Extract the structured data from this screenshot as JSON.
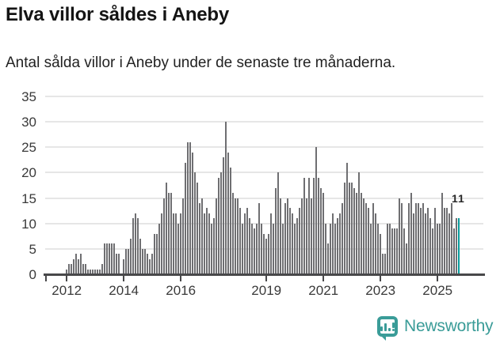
{
  "header": {
    "title": "Elva villor såldes i Aneby",
    "subtitle": "Antal sålda villor i Aneby under de senaste tre månaderna."
  },
  "chart_data": {
    "type": "bar",
    "title": "Elva villor såldes i Aneby",
    "subtitle": "Antal sålda villor i Aneby under de senaste tre månaderna.",
    "frequency": "monthly",
    "start_month": "2012-01",
    "ylim": [
      0,
      35
    ],
    "y_ticks": [
      0,
      5,
      10,
      15,
      20,
      25,
      30,
      35
    ],
    "x_ticks": [
      {
        "label": "2012",
        "month_index": 0
      },
      {
        "label": "2014",
        "month_index": 24
      },
      {
        "label": "2016",
        "month_index": 48
      },
      {
        "label": "2019",
        "month_index": 84
      },
      {
        "label": "2021",
        "month_index": 108
      },
      {
        "label": "2023",
        "month_index": 132
      },
      {
        "label": "2025",
        "month_index": 156
      }
    ],
    "grid": true,
    "bar_color": "#6f6f72",
    "values": [
      1,
      2,
      2,
      3,
      4,
      3,
      4,
      2,
      2,
      1,
      1,
      1,
      1,
      1,
      1,
      2,
      6,
      6,
      6,
      6,
      6,
      4,
      4,
      0,
      3,
      5,
      5,
      7,
      11,
      12,
      11,
      7,
      5,
      5,
      4,
      3,
      4,
      8,
      8,
      10,
      12,
      15,
      18,
      16,
      16,
      12,
      12,
      10,
      12,
      15,
      22,
      26,
      26,
      24,
      20,
      18,
      14,
      15,
      12,
      13,
      12,
      10,
      11,
      15,
      19,
      20,
      23,
      30,
      24,
      21,
      16,
      15,
      15,
      13,
      10,
      12,
      13,
      11,
      10,
      9,
      10,
      14,
      10,
      8,
      7,
      8,
      12,
      10,
      17,
      20,
      15,
      10,
      14,
      15,
      13,
      12,
      10,
      11,
      13,
      15,
      19,
      15,
      19,
      15,
      19,
      25,
      19,
      17,
      16,
      10,
      6,
      10,
      12,
      10,
      11,
      12,
      14,
      18,
      22,
      18,
      18,
      17,
      16,
      20,
      16,
      15,
      14,
      13,
      10,
      14,
      12,
      10,
      8,
      4,
      4,
      10,
      10,
      9,
      9,
      9,
      15,
      14,
      9,
      6,
      14,
      16,
      12,
      14,
      14,
      13,
      14,
      12,
      13,
      11,
      9,
      13,
      10,
      10,
      16,
      13,
      13,
      12,
      14,
      9,
      11,
      11
    ],
    "highlight": {
      "index": 165,
      "value": 11,
      "label": "11",
      "color": "#0a9c9c"
    }
  },
  "footer": {
    "brand": "Newsworthy",
    "brand_color": "#3a9c98"
  }
}
